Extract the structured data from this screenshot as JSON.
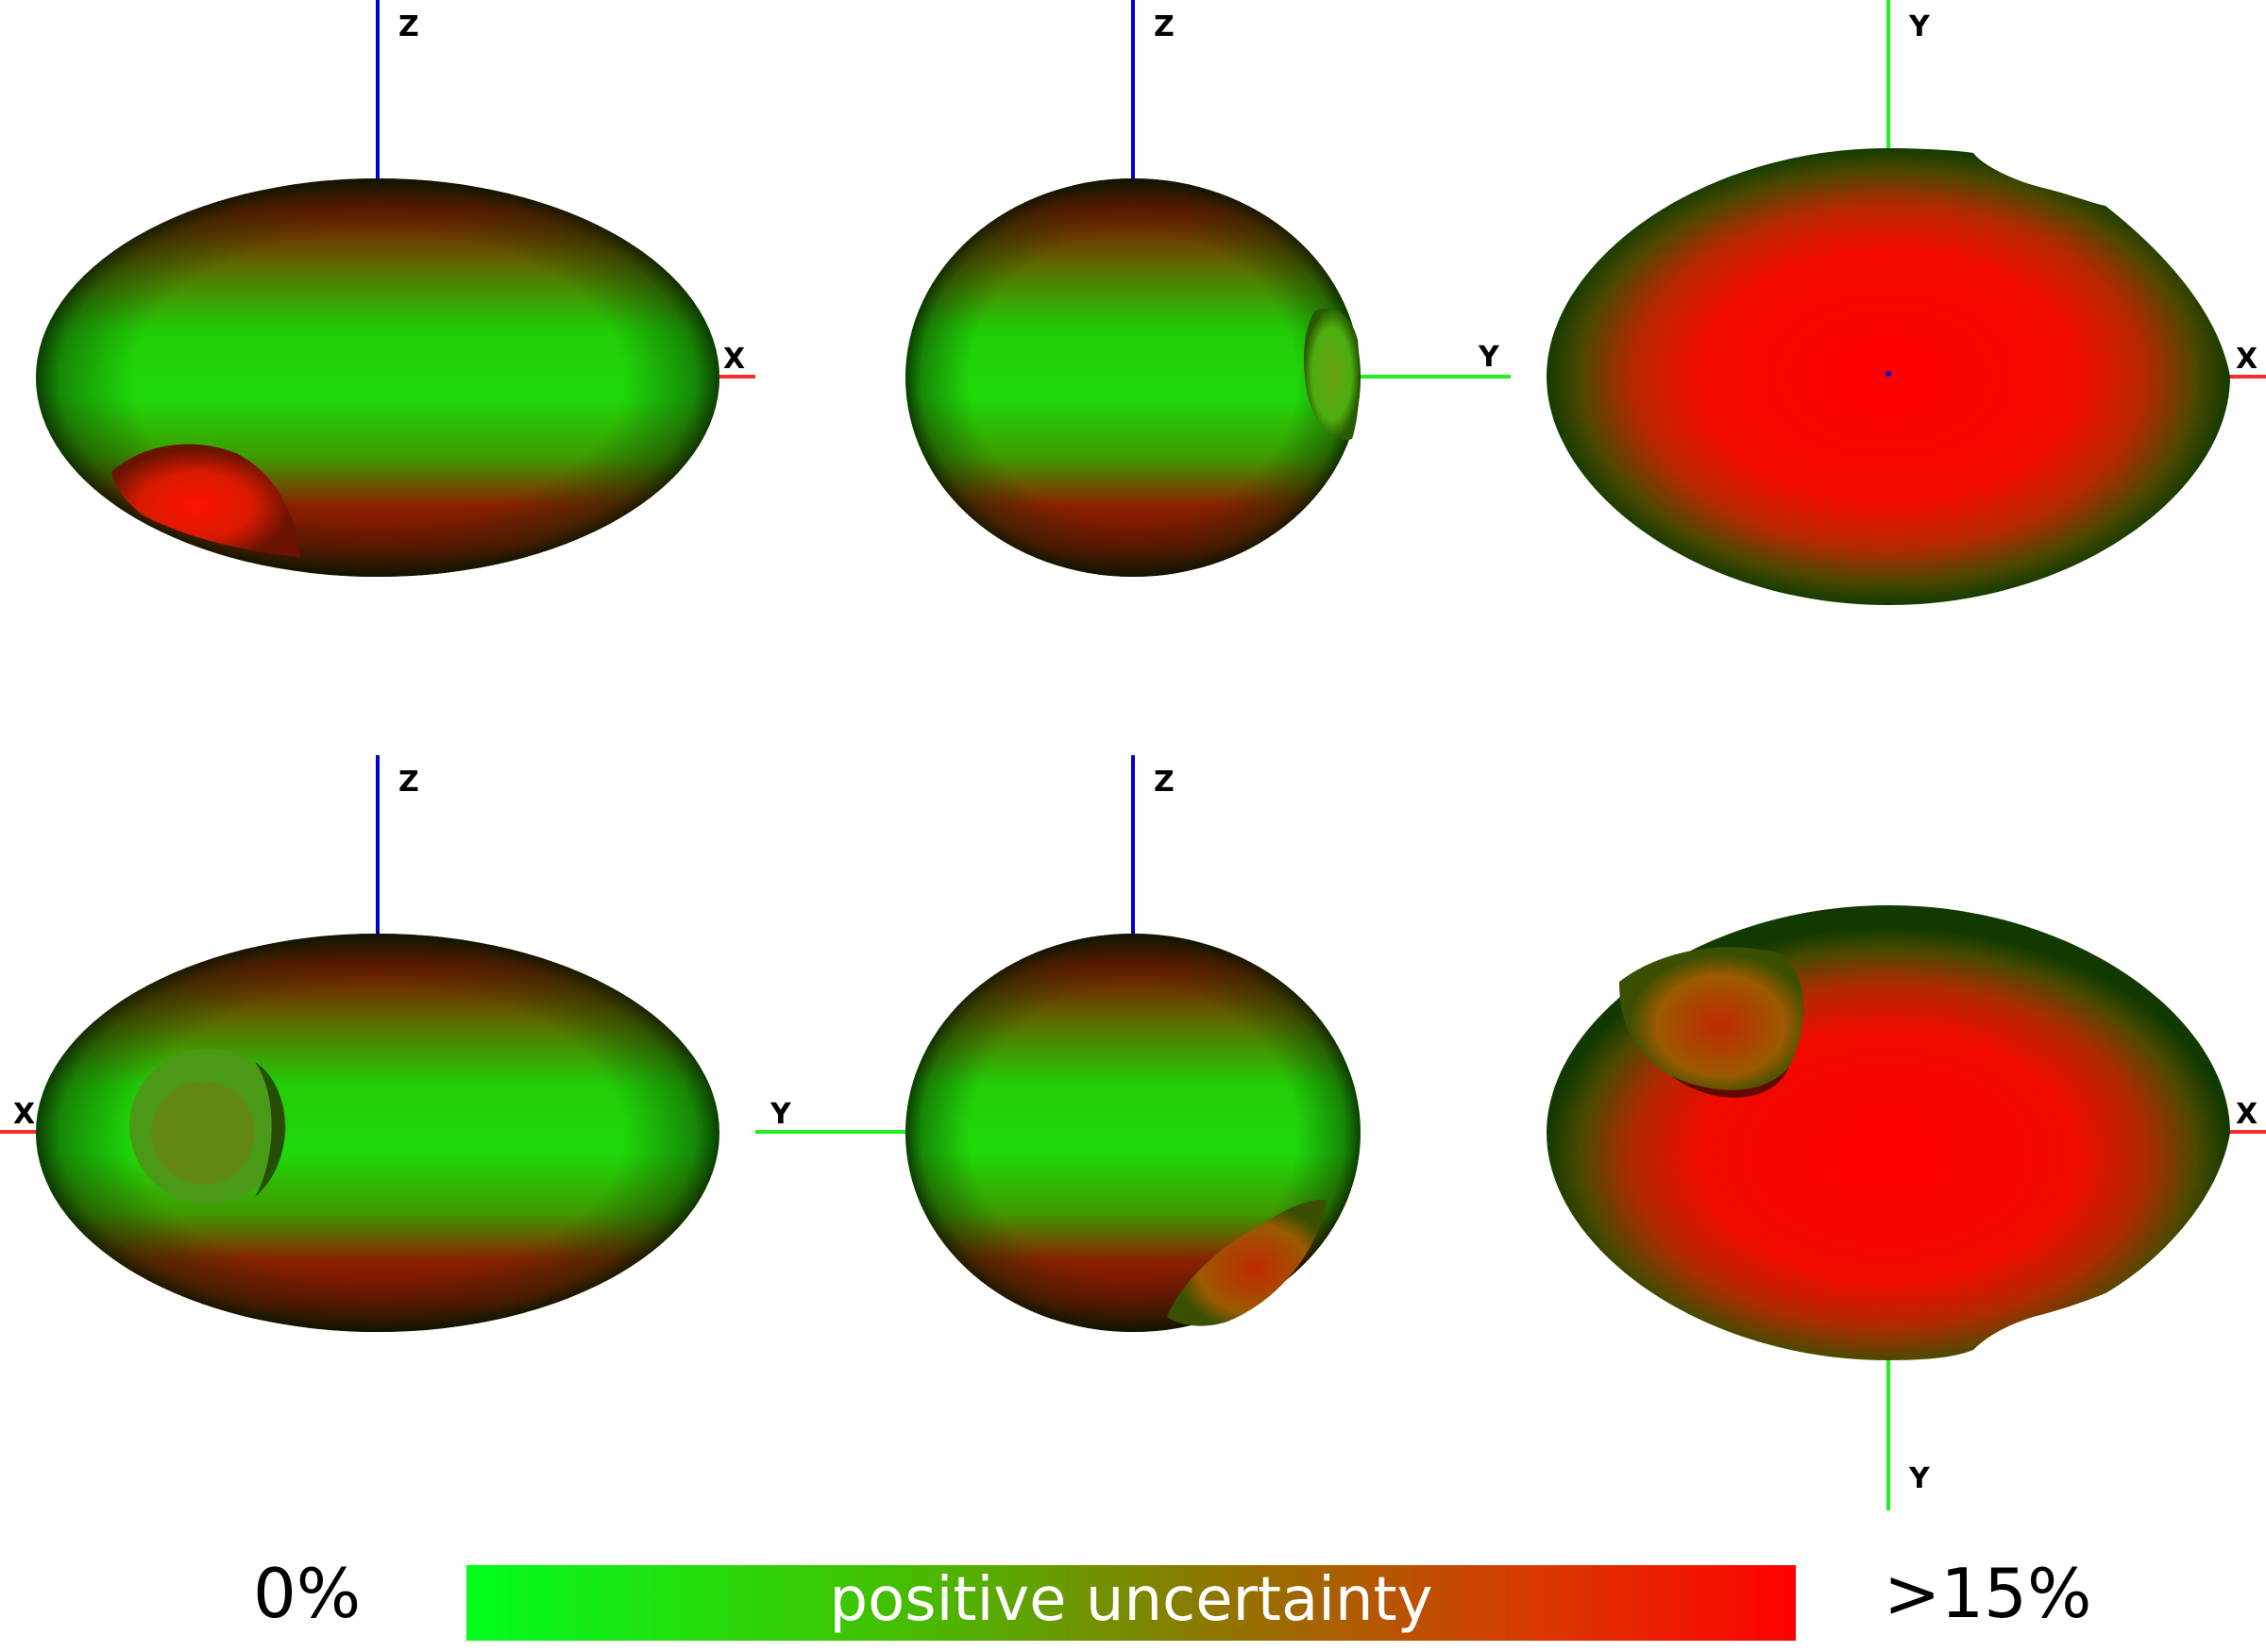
{
  "colors": {
    "axis_x": "#ff2b2b",
    "axis_y": "#22ee22",
    "axis_z": "#0000cc",
    "low": "#00ff1a",
    "high": "#ff0000",
    "shadow": "#2a0000"
  },
  "views": [
    {
      "axes": {
        "up": "Z",
        "right": "X"
      },
      "surface": "green-center",
      "crater": "bottom-left"
    },
    {
      "axes": {
        "up": "Z",
        "right": "Y"
      },
      "surface": "green-center",
      "crater": "right-edge"
    },
    {
      "axes": {
        "up": "Y",
        "right": "X"
      },
      "surface": "red-center",
      "crater": "none"
    },
    {
      "axes": {
        "up": "Z",
        "left": "X"
      },
      "surface": "green-center",
      "crater": "left"
    },
    {
      "axes": {
        "up": "Z",
        "left": "Y"
      },
      "surface": "green-center",
      "crater": "bottom-right"
    },
    {
      "axes": {
        "down": "Y",
        "right": "X"
      },
      "surface": "red-center",
      "crater": "top-left"
    }
  ],
  "legend": {
    "min_label": "0%",
    "max_label": ">15%",
    "title": "positive uncertainty",
    "gradient_start": "#00ff1a",
    "gradient_end": "#ff0000"
  }
}
